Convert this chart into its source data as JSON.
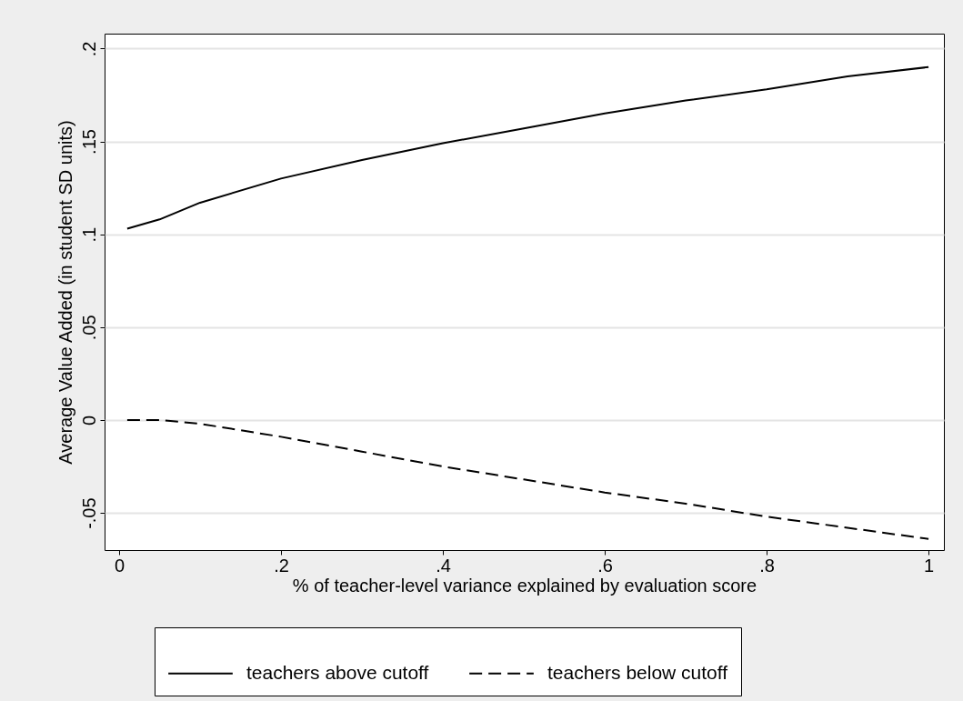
{
  "chart_data": {
    "type": "line",
    "xlabel": "% of teacher-level variance explained by evaluation score",
    "ylabel": "Average Value Added (in student SD units)",
    "xlim": [
      -0.018,
      1.019
    ],
    "ylim": [
      -0.07,
      0.208
    ],
    "xticks": [
      0,
      {
        "value": 0.2,
        "label": ".2"
      },
      {
        "value": 0.4,
        "label": ".4"
      },
      {
        "value": 0.6,
        "label": ".6"
      },
      {
        "value": 0.8,
        "label": ".8"
      },
      1
    ],
    "yticks": [
      {
        "value": -0.05,
        "label": "-.05"
      },
      0,
      {
        "value": 0.05,
        "label": ".05"
      },
      {
        "value": 0.1,
        "label": ".1"
      },
      {
        "value": 0.15,
        "label": ".15"
      },
      {
        "value": 0.2,
        "label": ".2"
      }
    ],
    "grid": "y",
    "legend": "bottom",
    "x": [
      0.01,
      0.05,
      0.1,
      0.2,
      0.3,
      0.4,
      0.5,
      0.6,
      0.7,
      0.8,
      0.9,
      1.0
    ],
    "series": [
      {
        "name": "teachers above cutoff",
        "color": "#000000",
        "line_style": "solid",
        "values": [
          0.103,
          0.108,
          0.117,
          0.13,
          0.14,
          0.149,
          0.157,
          0.165,
          0.172,
          0.178,
          0.185,
          0.19
        ]
      },
      {
        "name": "teachers below cutoff",
        "color": "#000000",
        "line_style": "dashed",
        "values": [
          0,
          0,
          -0.002,
          -0.009,
          -0.017,
          -0.025,
          -0.032,
          -0.039,
          -0.045,
          -0.052,
          -0.058,
          -0.064
        ]
      }
    ]
  }
}
